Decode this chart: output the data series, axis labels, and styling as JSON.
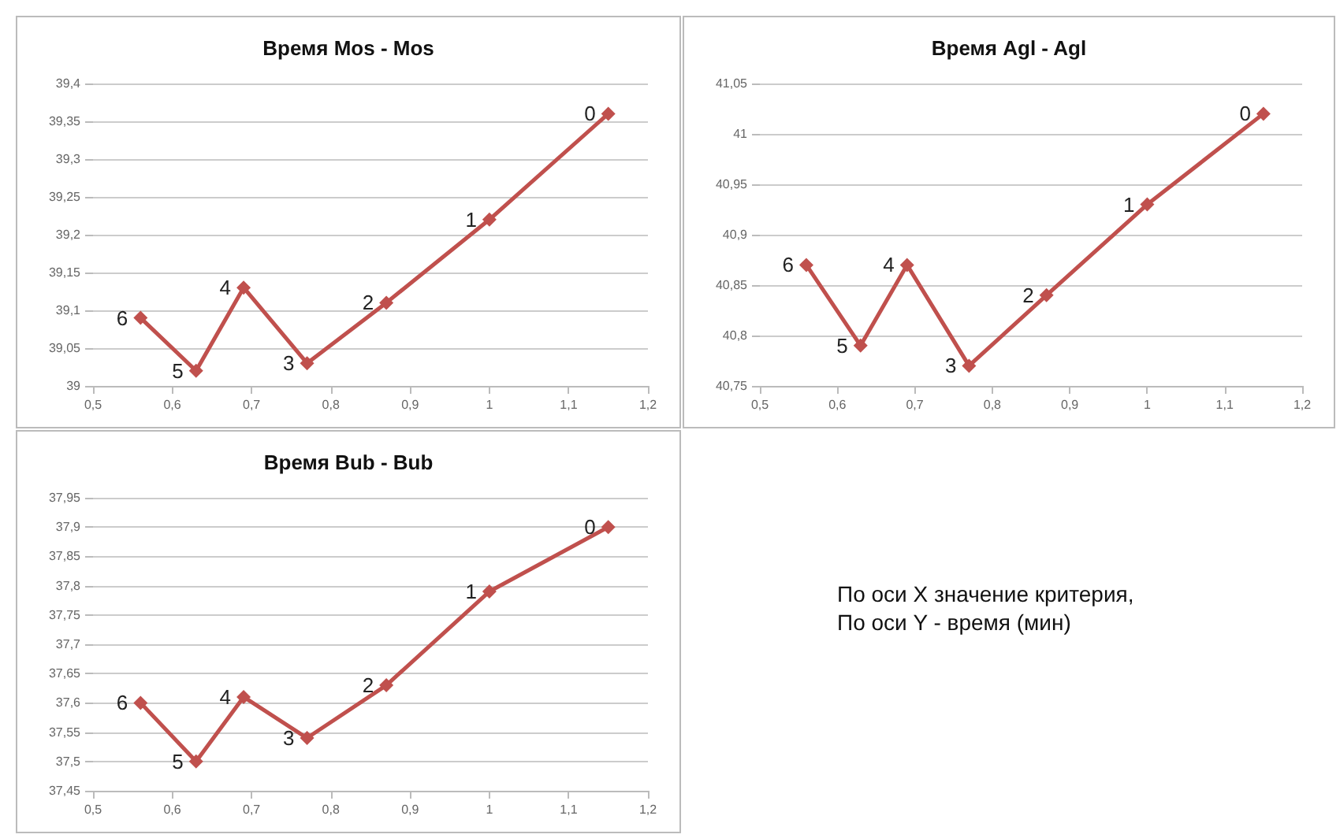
{
  "chart_data": [
    {
      "type": "line",
      "title": "Время Mos - Mos",
      "x": [
        0.56,
        0.63,
        0.69,
        0.77,
        0.87,
        1.0,
        1.15
      ],
      "series": [
        {
          "color": "#c0504d",
          "values": [
            39.09,
            39.02,
            39.13,
            39.03,
            39.11,
            39.22,
            39.36
          ]
        }
      ],
      "marker": "diamond",
      "grid": "y",
      "xlim": [
        0.5,
        1.2
      ],
      "xticks": [
        {
          "value": 0.5,
          "label": "0,5"
        },
        {
          "value": 0.6,
          "label": "0,6"
        },
        {
          "value": 0.7,
          "label": "0,7"
        },
        {
          "value": 0.8,
          "label": "0,8"
        },
        {
          "value": 0.9,
          "label": "0,9"
        },
        {
          "value": 1,
          "label": "1"
        },
        {
          "value": 1.1,
          "label": "1,1"
        },
        {
          "value": 1.2,
          "label": "1,2"
        }
      ],
      "ylim": [
        39,
        39.4
      ],
      "yticks": [
        39,
        {
          "value": 39.05,
          "label": "39,05"
        },
        {
          "value": 39.1,
          "label": "39,1"
        },
        {
          "value": 39.15,
          "label": "39,15"
        },
        {
          "value": 39.2,
          "label": "39,2"
        },
        {
          "value": 39.25,
          "label": "39,25"
        },
        {
          "value": 39.3,
          "label": "39,3"
        },
        {
          "value": 39.35,
          "label": "39,35"
        },
        {
          "value": 39.4,
          "label": "39,4"
        }
      ],
      "annotations": [
        {
          "text": "6",
          "x": 0.56,
          "y": 39.09
        },
        {
          "text": "5",
          "x": 0.63,
          "y": 39.02
        },
        {
          "text": "4",
          "x": 0.69,
          "y": 39.13
        },
        {
          "text": "3",
          "x": 0.77,
          "y": 39.03
        },
        {
          "text": "2",
          "x": 0.87,
          "y": 39.11
        },
        {
          "text": "1",
          "x": 1.0,
          "y": 39.22
        },
        {
          "text": "0",
          "x": 1.15,
          "y": 39.36
        }
      ]
    },
    {
      "type": "line",
      "title": "Время Agl - Agl",
      "x": [
        0.56,
        0.63,
        0.69,
        0.77,
        0.87,
        1.0,
        1.15
      ],
      "series": [
        {
          "color": "#c0504d",
          "values": [
            40.87,
            40.79,
            40.87,
            40.77,
            40.84,
            40.93,
            41.02
          ]
        }
      ],
      "marker": "diamond",
      "grid": "y",
      "xlim": [
        0.5,
        1.2
      ],
      "xticks": [
        {
          "value": 0.5,
          "label": "0,5"
        },
        {
          "value": 0.6,
          "label": "0,6"
        },
        {
          "value": 0.7,
          "label": "0,7"
        },
        {
          "value": 0.8,
          "label": "0,8"
        },
        {
          "value": 0.9,
          "label": "0,9"
        },
        {
          "value": 1,
          "label": "1"
        },
        {
          "value": 1.1,
          "label": "1,1"
        },
        {
          "value": 1.2,
          "label": "1,2"
        }
      ],
      "ylim": [
        40.75,
        41.05
      ],
      "yticks": [
        {
          "value": 40.75,
          "label": "40,75"
        },
        {
          "value": 40.8,
          "label": "40,8"
        },
        {
          "value": 40.85,
          "label": "40,85"
        },
        {
          "value": 40.9,
          "label": "40,9"
        },
        {
          "value": 40.95,
          "label": "40,95"
        },
        41,
        {
          "value": 41.05,
          "label": "41,05"
        }
      ],
      "annotations": [
        {
          "text": "6",
          "x": 0.56,
          "y": 40.87
        },
        {
          "text": "5",
          "x": 0.63,
          "y": 40.79
        },
        {
          "text": "4",
          "x": 0.69,
          "y": 40.87
        },
        {
          "text": "3",
          "x": 0.77,
          "y": 40.77
        },
        {
          "text": "2",
          "x": 0.87,
          "y": 40.84
        },
        {
          "text": "1",
          "x": 1.0,
          "y": 40.93
        },
        {
          "text": "0",
          "x": 1.15,
          "y": 41.02
        }
      ]
    },
    {
      "type": "line",
      "title": "Время Bub - Bub",
      "x": [
        0.56,
        0.63,
        0.69,
        0.77,
        0.87,
        1.0,
        1.15
      ],
      "series": [
        {
          "color": "#c0504d",
          "values": [
            37.6,
            37.5,
            37.61,
            37.54,
            37.63,
            37.79,
            37.9
          ]
        }
      ],
      "marker": "diamond",
      "grid": "y",
      "xlim": [
        0.5,
        1.2
      ],
      "xticks": [
        {
          "value": 0.5,
          "label": "0,5"
        },
        {
          "value": 0.6,
          "label": "0,6"
        },
        {
          "value": 0.7,
          "label": "0,7"
        },
        {
          "value": 0.8,
          "label": "0,8"
        },
        {
          "value": 0.9,
          "label": "0,9"
        },
        {
          "value": 1,
          "label": "1"
        },
        {
          "value": 1.1,
          "label": "1,1"
        },
        {
          "value": 1.2,
          "label": "1,2"
        }
      ],
      "ylim": [
        37.45,
        37.95
      ],
      "yticks": [
        {
          "value": 37.45,
          "label": "37,45"
        },
        {
          "value": 37.5,
          "label": "37,5"
        },
        {
          "value": 37.55,
          "label": "37,55"
        },
        {
          "value": 37.6,
          "label": "37,6"
        },
        {
          "value": 37.65,
          "label": "37,65"
        },
        {
          "value": 37.7,
          "label": "37,7"
        },
        {
          "value": 37.75,
          "label": "37,75"
        },
        {
          "value": 37.8,
          "label": "37,8"
        },
        {
          "value": 37.85,
          "label": "37,85"
        },
        {
          "value": 37.9,
          "label": "37,9"
        },
        {
          "value": 37.95,
          "label": "37,95"
        }
      ],
      "annotations": [
        {
          "text": "6",
          "x": 0.56,
          "y": 37.6
        },
        {
          "text": "5",
          "x": 0.63,
          "y": 37.5
        },
        {
          "text": "4",
          "x": 0.69,
          "y": 37.61
        },
        {
          "text": "3",
          "x": 0.77,
          "y": 37.54
        },
        {
          "text": "2",
          "x": 0.87,
          "y": 37.63
        },
        {
          "text": "1",
          "x": 1.0,
          "y": 37.79
        },
        {
          "text": "0",
          "x": 1.15,
          "y": 37.9
        }
      ]
    },
    {
      "type": "other",
      "annotations": [
        "По оси X значение критерия,",
        "По оси Y - время (мин)"
      ]
    }
  ]
}
